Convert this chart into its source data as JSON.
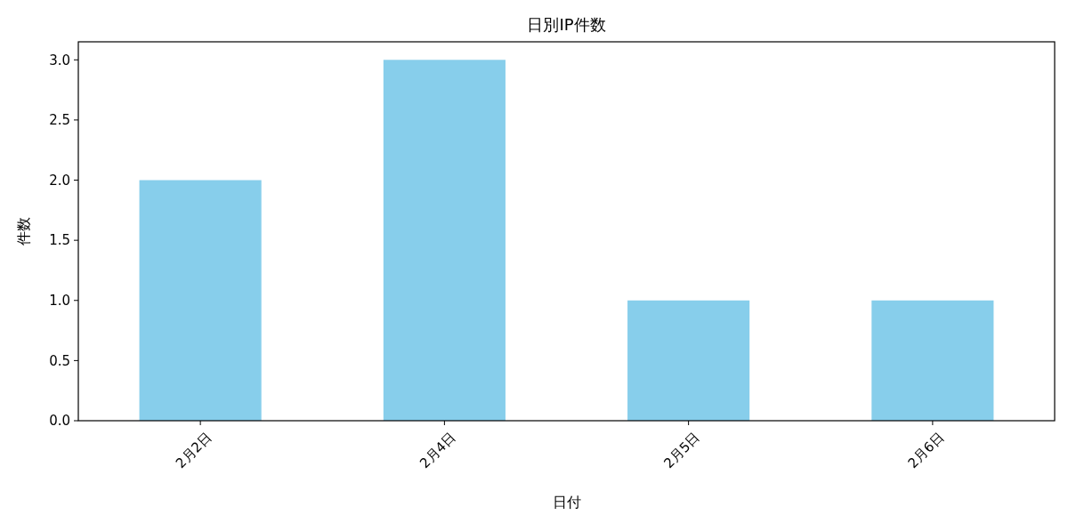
{
  "chart_data": {
    "type": "bar",
    "title": "日別IP件数",
    "xlabel": "日付",
    "ylabel": "件数",
    "categories": [
      "2月2日",
      "2月4日",
      "2月5日",
      "2月6日"
    ],
    "values": [
      2,
      3,
      1,
      1
    ],
    "color": "#87ceeb",
    "ylim": [
      0,
      3.15
    ],
    "yticks": [
      {
        "value": 0,
        "label": "0.0"
      },
      {
        "value": 0.5,
        "label": "0.5"
      },
      {
        "value": 1,
        "label": "1.0"
      },
      {
        "value": 1.5,
        "label": "1.5"
      },
      {
        "value": 2,
        "label": "2.0"
      },
      {
        "value": 2.5,
        "label": "2.5"
      },
      {
        "value": 3,
        "label": "3.0"
      }
    ],
    "grid": false
  }
}
